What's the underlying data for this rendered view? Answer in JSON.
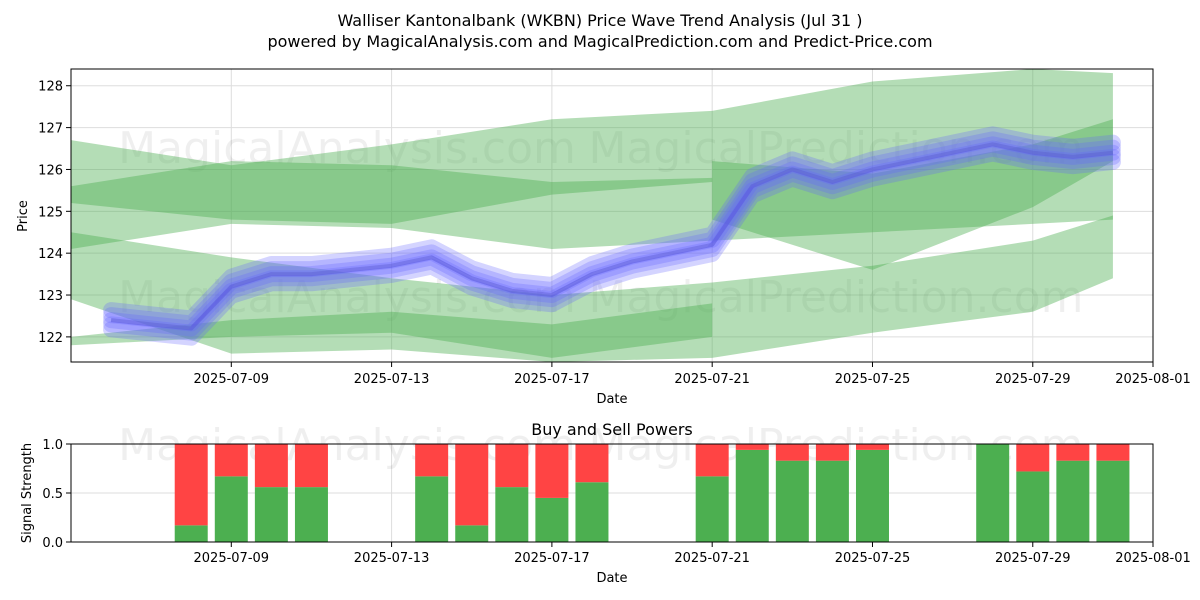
{
  "header": {
    "title": "Walliser Kantonalbank (WKBN) Price Wave Trend Analysis (Jul 31 )",
    "subtitle": "powered by MagicalAnalysis.com and MagicalPrediction.com and Predict-Price.com"
  },
  "watermarks": [
    "MagicalAnalysis.com",
    "MagicalPrediction.com"
  ],
  "colors": {
    "green_band": "#4caf50",
    "blue_wave": "#6666ff",
    "buy": "#4caf50",
    "sell": "#ff4444",
    "grid": "#dddddd",
    "axis": "#000000"
  },
  "chart_data": [
    {
      "type": "area",
      "title": "",
      "xlabel": "Date",
      "ylabel": "Price",
      "x_range": [
        "2025-07-05",
        "2025-08-01"
      ],
      "ylim": [
        121.4,
        128.4
      ],
      "x_ticks": [
        "2025-07-09",
        "2025-07-13",
        "2025-07-17",
        "2025-07-21",
        "2025-07-25",
        "2025-07-29",
        "2025-08-01"
      ],
      "y_ticks": [
        122,
        123,
        124,
        125,
        126,
        127,
        128
      ],
      "grid": true,
      "green_bands": [
        {
          "name": "upper long band",
          "x": [
            "2025-07-05",
            "2025-07-09",
            "2025-07-13",
            "2025-07-17",
            "2025-07-21",
            "2025-07-25",
            "2025-07-29",
            "2025-07-31"
          ],
          "upper": [
            126.7,
            126.1,
            126.6,
            127.2,
            127.4,
            128.1,
            128.4,
            128.3
          ],
          "lower": [
            124.1,
            124.7,
            124.6,
            124.1,
            124.3,
            124.5,
            124.7,
            124.8
          ]
        },
        {
          "name": "mid band",
          "x": [
            "2025-07-05",
            "2025-07-09",
            "2025-07-13",
            "2025-07-17",
            "2025-07-21"
          ],
          "upper": [
            125.6,
            126.2,
            126.1,
            125.7,
            125.8
          ],
          "lower": [
            125.2,
            124.8,
            124.7,
            125.4,
            125.7
          ]
        },
        {
          "name": "lower long band",
          "x": [
            "2025-07-05",
            "2025-07-09",
            "2025-07-13",
            "2025-07-17",
            "2025-07-21",
            "2025-07-25",
            "2025-07-29",
            "2025-07-31"
          ],
          "upper": [
            124.5,
            123.9,
            123.4,
            123.0,
            123.3,
            123.7,
            124.3,
            124.9
          ],
          "lower": [
            122.9,
            121.6,
            121.7,
            121.4,
            121.5,
            122.1,
            122.6,
            123.4
          ]
        },
        {
          "name": "low diagonal band",
          "x": [
            "2025-07-05",
            "2025-07-09",
            "2025-07-13",
            "2025-07-17",
            "2025-07-21"
          ],
          "upper": [
            122.0,
            122.4,
            122.6,
            122.3,
            122.8
          ],
          "lower": [
            121.8,
            122.0,
            122.1,
            121.5,
            122.0
          ]
        },
        {
          "name": "recent upper band",
          "x": [
            "2025-07-21",
            "2025-07-25",
            "2025-07-29",
            "2025-07-31"
          ],
          "upper": [
            126.2,
            125.9,
            126.6,
            127.2
          ],
          "lower": [
            124.8,
            123.6,
            125.1,
            126.2
          ]
        }
      ],
      "series": [
        {
          "name": "price wave",
          "x": [
            "2025-07-06",
            "2025-07-07",
            "2025-07-08",
            "2025-07-09",
            "2025-07-10",
            "2025-07-11",
            "2025-07-12",
            "2025-07-13",
            "2025-07-14",
            "2025-07-15",
            "2025-07-16",
            "2025-07-17",
            "2025-07-18",
            "2025-07-19",
            "2025-07-20",
            "2025-07-21",
            "2025-07-22",
            "2025-07-23",
            "2025-07-24",
            "2025-07-25",
            "2025-07-26",
            "2025-07-27",
            "2025-07-28",
            "2025-07-29",
            "2025-07-30",
            "2025-07-31"
          ],
          "values": [
            122.4,
            122.3,
            122.2,
            123.2,
            123.5,
            123.5,
            123.6,
            123.7,
            123.9,
            123.4,
            123.1,
            123.0,
            123.5,
            123.8,
            124.0,
            124.2,
            125.6,
            126.0,
            125.7,
            126.0,
            126.2,
            126.4,
            126.6,
            126.4,
            126.3,
            126.4
          ]
        }
      ]
    },
    {
      "type": "bar",
      "title": "Buy and Sell Powers",
      "xlabel": "Date",
      "ylabel": "Signal Strength",
      "ylim": [
        0,
        1.0
      ],
      "y_ticks": [
        "0.0",
        "0.5",
        "1.0"
      ],
      "x_ticks": [
        "2025-07-09",
        "2025-07-13",
        "2025-07-17",
        "2025-07-21",
        "2025-07-25",
        "2025-07-29",
        "2025-08-01"
      ],
      "categories": [
        "2025-07-08",
        "2025-07-09",
        "2025-07-10",
        "2025-07-11",
        "2025-07-14",
        "2025-07-15",
        "2025-07-16",
        "2025-07-17",
        "2025-07-18",
        "2025-07-21",
        "2025-07-22",
        "2025-07-23",
        "2025-07-24",
        "2025-07-25",
        "2025-07-28",
        "2025-07-29",
        "2025-07-30",
        "2025-07-31"
      ],
      "series": [
        {
          "name": "Buy",
          "values": [
            0.17,
            0.67,
            0.56,
            0.56,
            0.67,
            0.17,
            0.56,
            0.45,
            0.61,
            0.67,
            0.94,
            0.83,
            0.83,
            0.94,
            1.0,
            0.72,
            0.83,
            0.83
          ]
        },
        {
          "name": "Sell",
          "values": [
            0.83,
            0.33,
            0.44,
            0.44,
            0.33,
            0.83,
            0.44,
            0.55,
            0.39,
            0.33,
            0.06,
            0.17,
            0.17,
            0.06,
            0.0,
            0.28,
            0.17,
            0.17
          ]
        }
      ]
    }
  ]
}
